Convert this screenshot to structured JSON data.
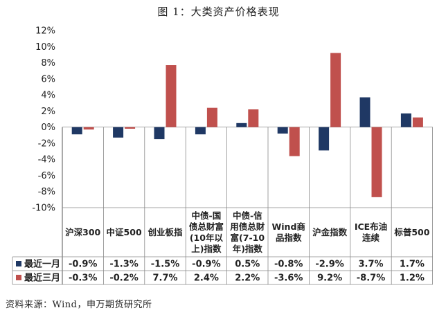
{
  "title": "图 1：大类资产价格表现",
  "source": "资料来源：Wind，申万期货研究所",
  "chart_data": {
    "type": "bar",
    "title": "图 1：大类资产价格表现",
    "ylim": [
      -10,
      12
    ],
    "yticks": [
      "12%",
      "10%",
      "8%",
      "6%",
      "4%",
      "2%",
      "0%",
      "-2%",
      "-4%",
      "-6%",
      "-8%",
      "-10%"
    ],
    "ytick_values": [
      12,
      10,
      8,
      6,
      4,
      2,
      0,
      -2,
      -4,
      -6,
      -8,
      -10
    ],
    "categories": [
      [
        "沪深300"
      ],
      [
        "中证500"
      ],
      [
        "创业板指"
      ],
      [
        "中债-国",
        "债总财富",
        "(10年以",
        "上)指数"
      ],
      [
        "中债-信",
        "用债总财",
        "富(7-10",
        "年)指数"
      ],
      [
        "Wind商",
        "品指数"
      ],
      [
        "沪金指数"
      ],
      [
        "ICE布油",
        "连续"
      ],
      [
        "标普500"
      ]
    ],
    "series": [
      {
        "name": "最近一月",
        "color": "#1f3864",
        "values": [
          -0.9,
          -1.3,
          -1.5,
          -0.9,
          0.5,
          -0.8,
          -2.9,
          3.7,
          1.7
        ],
        "labels": [
          "-0.9%",
          "-1.3%",
          "-1.5%",
          "-0.9%",
          "0.5%",
          "-0.8%",
          "-2.9%",
          "3.7%",
          "1.7%"
        ]
      },
      {
        "name": "最近三月",
        "color": "#c0504d",
        "values": [
          -0.3,
          -0.2,
          7.7,
          2.4,
          2.2,
          -3.6,
          9.2,
          -8.7,
          1.2
        ],
        "labels": [
          "-0.3%",
          "-0.2%",
          "7.7%",
          "2.4%",
          "2.2%",
          "-3.6%",
          "9.2%",
          "-8.7%",
          "1.2%"
        ]
      }
    ]
  }
}
